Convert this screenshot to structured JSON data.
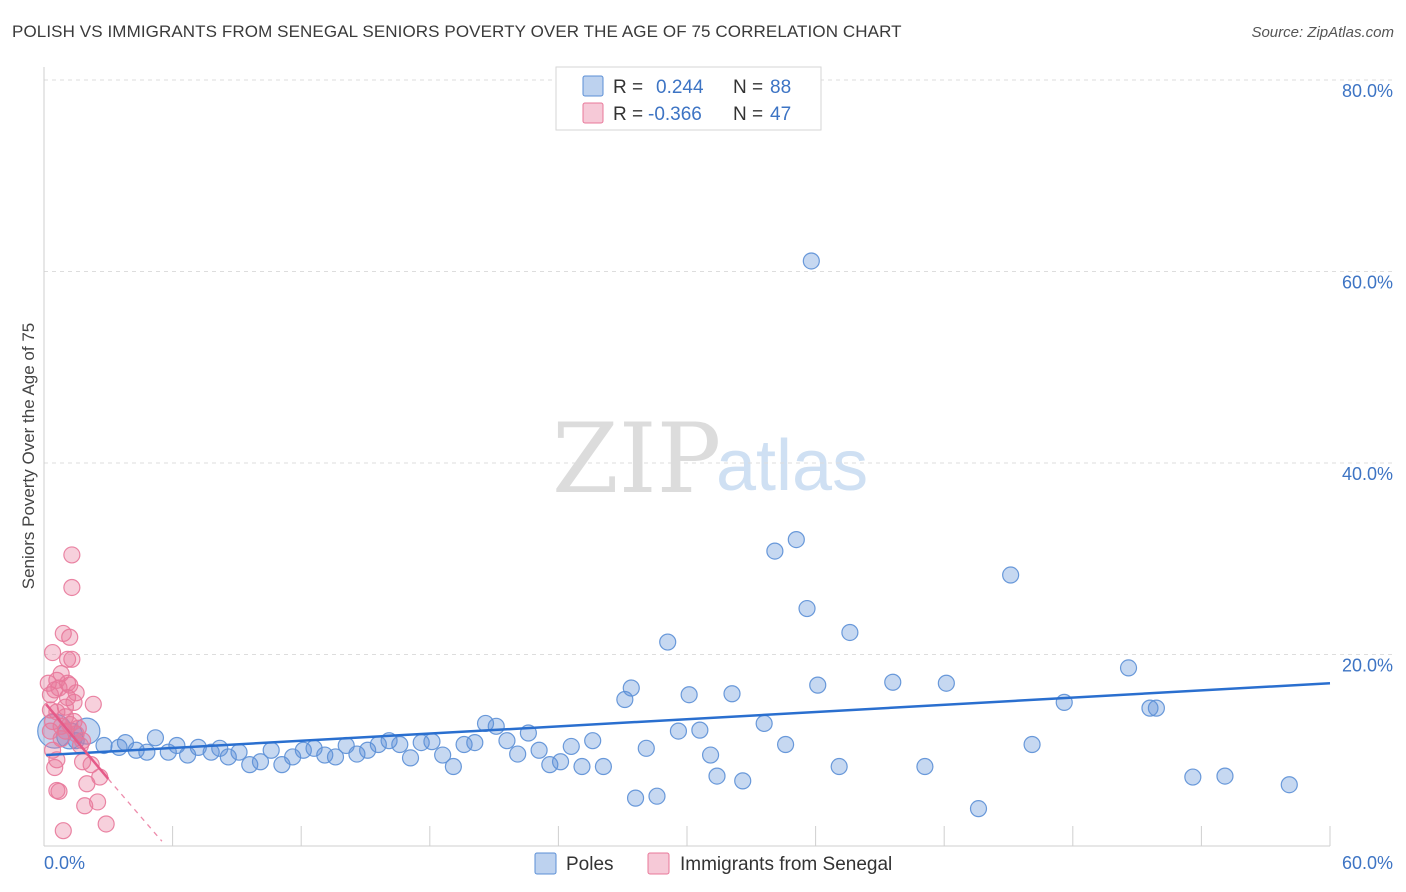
{
  "title": "POLISH VS IMMIGRANTS FROM SENEGAL SENIORS POVERTY OVER THE AGE OF 75 CORRELATION CHART",
  "source": "Source: ZipAtlas.com",
  "watermark": {
    "zip": "ZIP",
    "atlas": "atlas"
  },
  "colors": {
    "poles": "#5b8fd6",
    "senegal": "#e8789a",
    "poles_line": "#2a6fcf",
    "senegal_line": "#e55a88"
  },
  "legend": {
    "rows": [
      {
        "r_label": "R =",
        "r_value": "0.244",
        "n_label": "N =",
        "n_value": "88"
      },
      {
        "r_label": "R =",
        "r_value": "-0.366",
        "n_label": "N =",
        "n_value": "47"
      }
    ]
  },
  "bottom_legend": {
    "poles": "Poles",
    "senegal": "Immigrants from Senegal"
  },
  "chart_data": {
    "type": "scatter",
    "xlabel": "",
    "ylabel": "Seniors Poverty Over the Age of 75",
    "xlim": [
      0,
      60
    ],
    "ylim": [
      0,
      80
    ],
    "x_tick_labels": [
      "0.0%",
      "60.0%"
    ],
    "y_ticks": [
      20,
      40,
      60,
      80
    ],
    "y_tick_labels": [
      "20.0%",
      "40.0%",
      "60.0%",
      "80.0%"
    ],
    "series": [
      {
        "name": "Poles",
        "trend": {
          "x": [
            0.1,
            60
          ],
          "y": [
            9.5,
            17.0
          ],
          "style": "solid"
        },
        "points": [
          {
            "x": 0.5,
            "y": 12.0,
            "s": "xl"
          },
          {
            "x": 1.2,
            "y": 11.5,
            "s": "l"
          },
          {
            "x": 2.0,
            "y": 12.0,
            "s": "l"
          },
          {
            "x": 1.5,
            "y": 11.0
          },
          {
            "x": 2.8,
            "y": 10.5
          },
          {
            "x": 3.5,
            "y": 10.3
          },
          {
            "x": 3.8,
            "y": 10.8
          },
          {
            "x": 4.3,
            "y": 10.0
          },
          {
            "x": 4.8,
            "y": 9.8
          },
          {
            "x": 5.2,
            "y": 11.3
          },
          {
            "x": 5.8,
            "y": 9.8
          },
          {
            "x": 6.2,
            "y": 10.5
          },
          {
            "x": 6.7,
            "y": 9.5
          },
          {
            "x": 7.2,
            "y": 10.3
          },
          {
            "x": 7.8,
            "y": 9.8
          },
          {
            "x": 8.2,
            "y": 10.2
          },
          {
            "x": 8.6,
            "y": 9.3
          },
          {
            "x": 9.1,
            "y": 9.8
          },
          {
            "x": 9.6,
            "y": 8.5
          },
          {
            "x": 10.1,
            "y": 8.8
          },
          {
            "x": 10.6,
            "y": 10.0
          },
          {
            "x": 11.1,
            "y": 8.5
          },
          {
            "x": 11.6,
            "y": 9.3
          },
          {
            "x": 12.1,
            "y": 10.0
          },
          {
            "x": 12.6,
            "y": 10.2
          },
          {
            "x": 13.1,
            "y": 9.5
          },
          {
            "x": 13.6,
            "y": 9.3
          },
          {
            "x": 14.1,
            "y": 10.5
          },
          {
            "x": 14.6,
            "y": 9.6
          },
          {
            "x": 15.1,
            "y": 10.0
          },
          {
            "x": 15.6,
            "y": 10.6
          },
          {
            "x": 16.1,
            "y": 11.0
          },
          {
            "x": 16.6,
            "y": 10.6
          },
          {
            "x": 17.1,
            "y": 9.2
          },
          {
            "x": 17.6,
            "y": 10.8
          },
          {
            "x": 18.1,
            "y": 10.9
          },
          {
            "x": 18.6,
            "y": 9.5
          },
          {
            "x": 19.1,
            "y": 8.3
          },
          {
            "x": 19.6,
            "y": 10.6
          },
          {
            "x": 20.1,
            "y": 10.8
          },
          {
            "x": 20.6,
            "y": 12.8
          },
          {
            "x": 21.1,
            "y": 12.5
          },
          {
            "x": 21.6,
            "y": 11.0
          },
          {
            "x": 22.1,
            "y": 9.6
          },
          {
            "x": 22.6,
            "y": 11.8
          },
          {
            "x": 23.1,
            "y": 10.0
          },
          {
            "x": 23.6,
            "y": 8.5
          },
          {
            "x": 24.1,
            "y": 8.8
          },
          {
            "x": 24.6,
            "y": 10.4
          },
          {
            "x": 25.1,
            "y": 8.3
          },
          {
            "x": 25.6,
            "y": 11.0
          },
          {
            "x": 26.1,
            "y": 8.3
          },
          {
            "x": 27.1,
            "y": 15.3
          },
          {
            "x": 27.4,
            "y": 16.5
          },
          {
            "x": 27.6,
            "y": 5.0
          },
          {
            "x": 28.1,
            "y": 10.2
          },
          {
            "x": 28.6,
            "y": 5.2
          },
          {
            "x": 29.1,
            "y": 21.3
          },
          {
            "x": 29.6,
            "y": 12.0
          },
          {
            "x": 30.1,
            "y": 15.8
          },
          {
            "x": 30.6,
            "y": 12.1
          },
          {
            "x": 31.1,
            "y": 9.5
          },
          {
            "x": 31.4,
            "y": 7.3
          },
          {
            "x": 32.1,
            "y": 15.9
          },
          {
            "x": 32.6,
            "y": 6.8
          },
          {
            "x": 33.6,
            "y": 12.8
          },
          {
            "x": 34.1,
            "y": 30.8
          },
          {
            "x": 34.6,
            "y": 10.6
          },
          {
            "x": 35.1,
            "y": 32.0
          },
          {
            "x": 35.6,
            "y": 24.8
          },
          {
            "x": 35.8,
            "y": 61.1
          },
          {
            "x": 36.1,
            "y": 16.8
          },
          {
            "x": 37.1,
            "y": 8.3
          },
          {
            "x": 37.6,
            "y": 22.3
          },
          {
            "x": 39.6,
            "y": 17.1
          },
          {
            "x": 41.1,
            "y": 8.3
          },
          {
            "x": 42.1,
            "y": 17.0
          },
          {
            "x": 43.6,
            "y": 3.9
          },
          {
            "x": 45.1,
            "y": 28.3
          },
          {
            "x": 46.1,
            "y": 10.6
          },
          {
            "x": 47.6,
            "y": 15.0
          },
          {
            "x": 50.6,
            "y": 18.6
          },
          {
            "x": 51.6,
            "y": 14.4
          },
          {
            "x": 51.9,
            "y": 14.4
          },
          {
            "x": 53.6,
            "y": 7.2
          },
          {
            "x": 55.1,
            "y": 7.3
          },
          {
            "x": 58.1,
            "y": 6.4
          }
        ]
      },
      {
        "name": "Immigrants from Senegal",
        "trend": {
          "x": [
            0.1,
            3.0
          ],
          "y": [
            14.8,
            7.0
          ],
          "style": "solid",
          "extended": {
            "x": [
              3.0,
              5.5
            ],
            "y": [
              7.0,
              0.5
            ],
            "style": "dashed"
          }
        },
        "points": [
          {
            "x": 0.2,
            "y": 17.0
          },
          {
            "x": 0.3,
            "y": 15.8
          },
          {
            "x": 0.4,
            "y": 13.0
          },
          {
            "x": 0.3,
            "y": 12.0
          },
          {
            "x": 0.4,
            "y": 10.0
          },
          {
            "x": 0.5,
            "y": 8.2
          },
          {
            "x": 0.6,
            "y": 5.8
          },
          {
            "x": 0.8,
            "y": 18.0
          },
          {
            "x": 0.7,
            "y": 16.5
          },
          {
            "x": 0.6,
            "y": 14.0
          },
          {
            "x": 0.8,
            "y": 12.5
          },
          {
            "x": 1.0,
            "y": 12.0
          },
          {
            "x": 1.0,
            "y": 13.5
          },
          {
            "x": 1.1,
            "y": 15.5
          },
          {
            "x": 1.1,
            "y": 17.0
          },
          {
            "x": 1.1,
            "y": 19.5
          },
          {
            "x": 1.2,
            "y": 21.8
          },
          {
            "x": 1.3,
            "y": 27.0
          },
          {
            "x": 1.3,
            "y": 30.4
          },
          {
            "x": 1.2,
            "y": 16.8
          },
          {
            "x": 1.3,
            "y": 19.5
          },
          {
            "x": 1.4,
            "y": 15.0
          },
          {
            "x": 1.5,
            "y": 16.0
          },
          {
            "x": 1.4,
            "y": 13.0
          },
          {
            "x": 1.6,
            "y": 12.3
          },
          {
            "x": 1.8,
            "y": 11.0
          },
          {
            "x": 1.7,
            "y": 10.5
          },
          {
            "x": 1.9,
            "y": 4.2
          },
          {
            "x": 2.0,
            "y": 6.5
          },
          {
            "x": 2.2,
            "y": 8.5
          },
          {
            "x": 2.3,
            "y": 14.8
          },
          {
            "x": 2.5,
            "y": 4.6
          },
          {
            "x": 2.6,
            "y": 7.2
          },
          {
            "x": 2.9,
            "y": 2.3
          },
          {
            "x": 0.9,
            "y": 1.6
          },
          {
            "x": 0.7,
            "y": 5.7
          },
          {
            "x": 0.5,
            "y": 16.3
          },
          {
            "x": 0.6,
            "y": 17.3
          },
          {
            "x": 0.4,
            "y": 20.2
          },
          {
            "x": 0.9,
            "y": 22.2
          },
          {
            "x": 1.0,
            "y": 14.5
          },
          {
            "x": 0.3,
            "y": 14.2
          },
          {
            "x": 1.5,
            "y": 11.7
          },
          {
            "x": 0.8,
            "y": 11.2
          },
          {
            "x": 1.2,
            "y": 12.7
          },
          {
            "x": 0.6,
            "y": 9.0
          },
          {
            "x": 1.8,
            "y": 8.8
          }
        ]
      }
    ]
  }
}
